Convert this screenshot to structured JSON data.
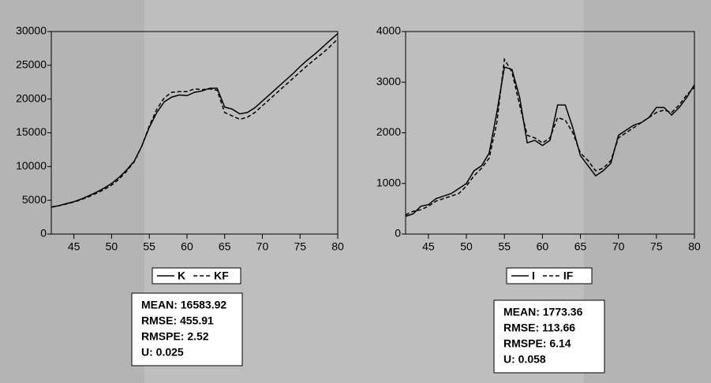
{
  "chart_data": [
    {
      "type": "line",
      "x": [
        42,
        43,
        44,
        45,
        46,
        47,
        48,
        49,
        50,
        51,
        52,
        53,
        54,
        55,
        56,
        57,
        58,
        59,
        60,
        61,
        62,
        63,
        64,
        65,
        66,
        67,
        68,
        69,
        70,
        71,
        72,
        73,
        74,
        75,
        76,
        77,
        78,
        79,
        80
      ],
      "series": [
        {
          "name": "K",
          "color": "#000000",
          "line_style": "solid",
          "values": [
            4000,
            4200,
            4500,
            4800,
            5200,
            5700,
            6200,
            6800,
            7500,
            8400,
            9500,
            10800,
            13000,
            15800,
            18000,
            19600,
            20300,
            20600,
            20500,
            21000,
            21200,
            21600,
            21600,
            18800,
            18500,
            17800,
            18000,
            18700,
            19700,
            20700,
            21700,
            22700,
            23700,
            24800,
            25800,
            26700,
            27700,
            28700,
            29700
          ]
        },
        {
          "name": "KF",
          "color": "#000000",
          "line_style": "dashed",
          "values": [
            4000,
            4200,
            4450,
            4750,
            5100,
            5550,
            6050,
            6600,
            7250,
            8150,
            9300,
            10700,
            13000,
            16000,
            18500,
            20200,
            21000,
            21100,
            21100,
            21500,
            21400,
            21500,
            21300,
            18000,
            17500,
            17000,
            17300,
            18000,
            19000,
            20000,
            21000,
            22000,
            23000,
            24000,
            25000,
            25900,
            26800,
            27800,
            28900
          ]
        }
      ],
      "xlim": [
        42,
        80
      ],
      "xticks": [
        45,
        50,
        55,
        60,
        65,
        70,
        75,
        80
      ],
      "ylim": [
        0,
        30000
      ],
      "yticks": [
        0,
        5000,
        10000,
        15000,
        20000,
        25000,
        30000
      ],
      "grid": false,
      "legend": "bottom",
      "annotations": [
        "MEAN: 16583.92",
        "RMSE: 455.91",
        "RMSPE: 2.52",
        "U: 0.025"
      ]
    },
    {
      "type": "line",
      "x": [
        42,
        43,
        44,
        45,
        46,
        47,
        48,
        49,
        50,
        51,
        52,
        53,
        54,
        55,
        56,
        57,
        58,
        59,
        60,
        61,
        62,
        63,
        64,
        65,
        66,
        67,
        68,
        69,
        70,
        71,
        72,
        73,
        74,
        75,
        76,
        77,
        78,
        79,
        80
      ],
      "series": [
        {
          "name": "I",
          "color": "#000000",
          "line_style": "solid",
          "values": [
            350,
            400,
            550,
            580,
            700,
            750,
            800,
            900,
            1000,
            1250,
            1350,
            1600,
            2400,
            3300,
            3250,
            2700,
            1800,
            1850,
            1750,
            1850,
            2550,
            2550,
            2100,
            1550,
            1350,
            1150,
            1250,
            1400,
            1950,
            2050,
            2150,
            2200,
            2300,
            2500,
            2500,
            2350,
            2500,
            2700,
            2950
          ]
        },
        {
          "name": "IF",
          "color": "#000000",
          "line_style": "dashed",
          "values": [
            380,
            450,
            480,
            550,
            650,
            700,
            750,
            800,
            950,
            1150,
            1300,
            1500,
            2200,
            3450,
            3200,
            2550,
            1950,
            1900,
            1800,
            1900,
            2300,
            2250,
            2000,
            1600,
            1450,
            1250,
            1300,
            1450,
            1900,
            2000,
            2100,
            2200,
            2300,
            2400,
            2450,
            2400,
            2550,
            2750,
            2900
          ]
        }
      ],
      "xlim": [
        42,
        80
      ],
      "xticks": [
        45,
        50,
        55,
        60,
        65,
        70,
        75,
        80
      ],
      "ylim": [
        0,
        4000
      ],
      "yticks": [
        0,
        1000,
        2000,
        3000,
        4000
      ],
      "grid": false,
      "legend": "bottom",
      "annotations": [
        "MEAN: 1773.36",
        "RMSE: 113.66",
        "RMSPE: 6.14",
        "U: 0.058"
      ]
    }
  ]
}
